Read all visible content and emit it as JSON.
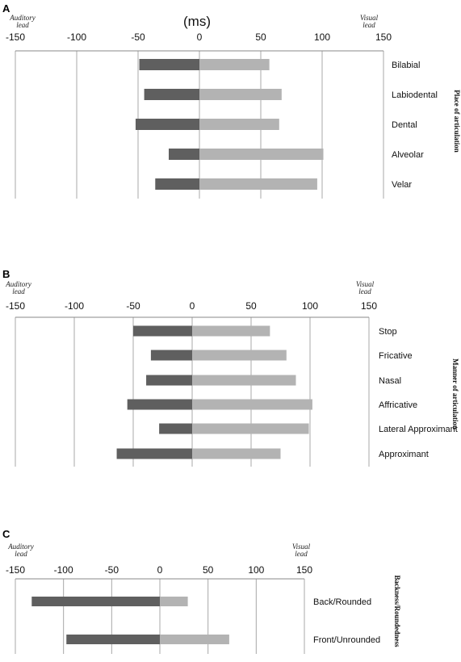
{
  "chart_data": [
    {
      "type": "bar",
      "panel": "A",
      "orientation": "horizontal-diverging",
      "unit_label": "(ms)",
      "left_note": "Auditory lead",
      "right_note": "Visual lead",
      "side_title": "Place of articulation",
      "xlim": [
        -150,
        150
      ],
      "xticks": [
        -150,
        -100,
        -50,
        0,
        50,
        100,
        150
      ],
      "grid": true,
      "categories": [
        "Bilabial",
        "Labiodental",
        "Dental",
        "Alveolar",
        "Velar"
      ],
      "series": [
        {
          "values": [
            -49,
            -45,
            -52,
            -25,
            -36
          ]
        },
        {
          "values": [
            57,
            67,
            65,
            101,
            96
          ]
        }
      ]
    },
    {
      "type": "bar",
      "panel": "B",
      "orientation": "horizontal-diverging",
      "left_note": "Auditory lead",
      "right_note": "Visual lead",
      "side_title": "Manner of articulation",
      "xlim": [
        -150,
        150
      ],
      "xticks": [
        -150,
        -100,
        -50,
        0,
        50,
        100,
        150
      ],
      "grid": true,
      "categories": [
        "Stop",
        "Fricative",
        "Nasal",
        "Affricative",
        "Lateral Approximant",
        "Approximant"
      ],
      "series": [
        {
          "values": [
            -50,
            -35,
            -39,
            -55,
            -28,
            -64
          ]
        },
        {
          "values": [
            66,
            80,
            88,
            102,
            99,
            75
          ]
        }
      ]
    },
    {
      "type": "bar",
      "panel": "C",
      "orientation": "horizontal-diverging",
      "left_note": "Auditory lead",
      "right_note": "Visual lead",
      "side_title": "Backness/Roundedness",
      "xlim": [
        -150,
        150
      ],
      "xticks": [
        -150,
        -100,
        -50,
        0,
        50,
        100,
        150
      ],
      "grid": true,
      "categories": [
        "Back/Rounded",
        "Front/Unrounded"
      ],
      "series": [
        {
          "values": [
            -133,
            -97
          ]
        },
        {
          "values": [
            29,
            72
          ]
        }
      ]
    }
  ],
  "colors": {
    "negative_bar": "#5f5f5f",
    "positive_bar": "#b3b3b3",
    "grid": "#a8a8a8",
    "axis": "#888888"
  }
}
